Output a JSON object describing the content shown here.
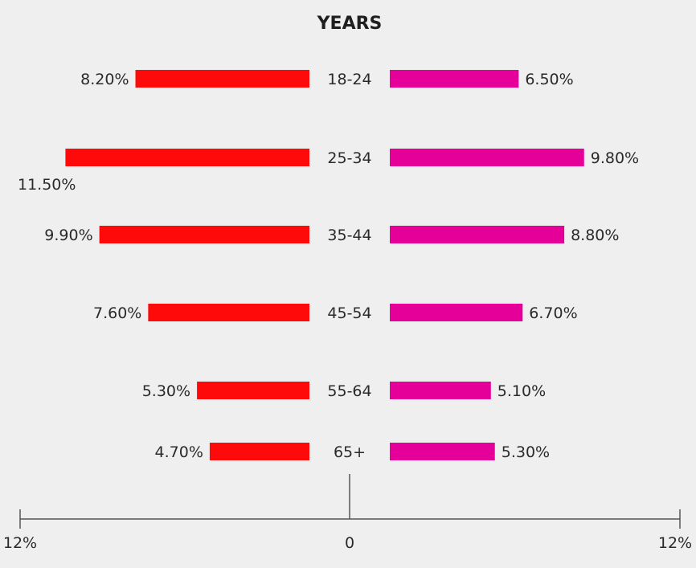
{
  "chart_data": {
    "type": "bar",
    "title": "YEARS",
    "orientation": "horizontal-butterfly",
    "categories": [
      "18-24",
      "25-34",
      "35-44",
      "45-54",
      "55-64",
      "65+"
    ],
    "series": [
      {
        "values": [
          8.2,
          11.5,
          9.9,
          7.6,
          5.3,
          4.7
        ],
        "labels": [
          "8.20%",
          "11.50%",
          "9.90%",
          "7.60%",
          "5.30%",
          "4.70%"
        ],
        "side": "left",
        "color": "#ff0a0a"
      },
      {
        "values": [
          6.5,
          9.8,
          8.8,
          6.7,
          5.1,
          5.3
        ],
        "labels": [
          "6.50%",
          "9.80%",
          "8.80%",
          "6.70%",
          "5.10%",
          "5.30%"
        ],
        "side": "right",
        "color": "#e6009a"
      }
    ],
    "axis": {
      "ticks": [
        "12%",
        "0",
        "12%"
      ],
      "range": [
        0,
        12
      ]
    },
    "grid": false,
    "legend": "none"
  }
}
